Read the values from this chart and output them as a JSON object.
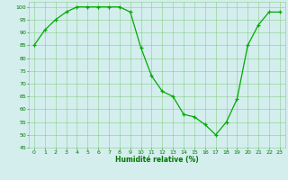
{
  "x": [
    0,
    1,
    2,
    3,
    4,
    5,
    6,
    7,
    8,
    9,
    10,
    11,
    12,
    13,
    14,
    15,
    16,
    17,
    18,
    19,
    20,
    21,
    22,
    23
  ],
  "y": [
    85,
    91,
    95,
    98,
    100,
    100,
    100,
    100,
    100,
    98,
    84,
    73,
    67,
    65,
    58,
    57,
    54,
    50,
    55,
    64,
    85,
    93,
    98,
    98
  ],
  "line_color": "#00aa00",
  "marker_color": "#00aa00",
  "bg_color": "#d4eeee",
  "grid_color": "#88cc88",
  "xlabel": "Humidité relative (%)",
  "xlabel_color": "#007700",
  "tick_color": "#007700",
  "ylim": [
    45,
    102
  ],
  "xlim": [
    -0.5,
    23.5
  ],
  "yticks": [
    45,
    50,
    55,
    60,
    65,
    70,
    75,
    80,
    85,
    90,
    95,
    100
  ],
  "xticks": [
    0,
    1,
    2,
    3,
    4,
    5,
    6,
    7,
    8,
    9,
    10,
    11,
    12,
    13,
    14,
    15,
    16,
    17,
    18,
    19,
    20,
    21,
    22,
    23
  ]
}
